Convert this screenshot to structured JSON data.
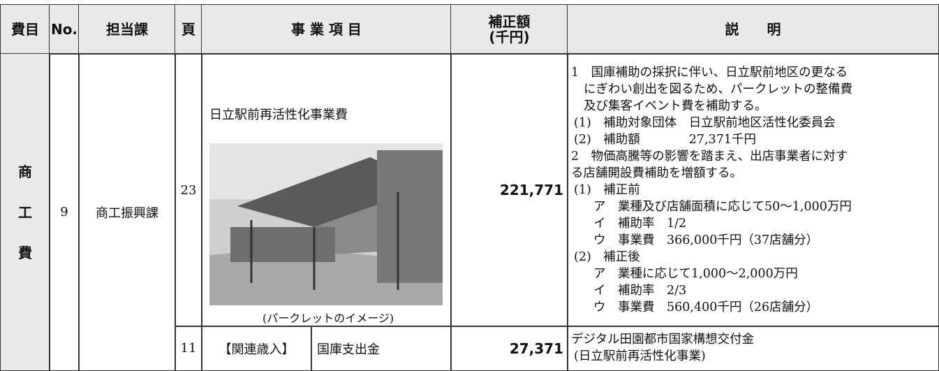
{
  "header": {
    "columns": [
      "費目",
      "No.",
      "担当課",
      "頁",
      "事 業 項 目",
      "補正額",
      "(千円)",
      "説　　明"
    ]
  },
  "rows": [
    {
      "category": [
        "商",
        "工",
        "費"
      ],
      "no": "9",
      "department": "商工振興課",
      "page": "23",
      "item": "日立駅前再活性化事業費",
      "image_caption": "(パークレットのイメージ)",
      "amount": "221,771",
      "description": [
        "1　国庫補助の採択に伴い、日立駅前地区の更なる",
        "にぎわい創出を図るため、パークレットの整備費",
        "及び集客イベント費を補助する。",
        "(1)　補助対象団体　日立駅前地区活性化委員会",
        "(2)　補助額　　　　27,371千円",
        "2　物価高騰等の影響を踏まえ、出店事業者に対す",
        "る店舗開設費補助を増額する。",
        "(1)　補正前",
        "ア　業種及び店舗面積に応じて50～1,000万円",
        "イ　補助率　1/2",
        "ウ　事業費　366,000千円（37店舗分）",
        "(2)　補正後",
        "ア　業種に応じて1,000～2,000万円",
        "イ　補助率　2/3",
        "ウ　事業費　560,400千円（26店舗分）"
      ]
    },
    {
      "page": "11",
      "item_label": "【関連歳入】",
      "item": "国庫支出金",
      "amount": "27,371",
      "description": [
        "デジタル田園都市国家構想交付金",
        "(日立駅前再活性化事業)"
      ]
    }
  ]
}
